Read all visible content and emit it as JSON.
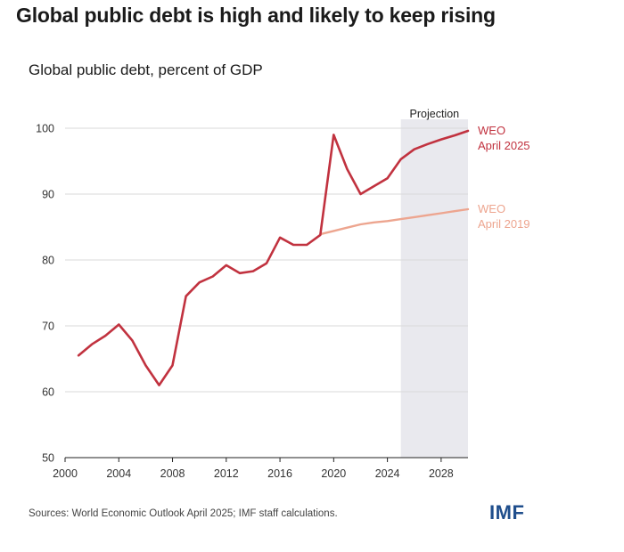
{
  "title": "Global public debt is high and likely to keep rising",
  "subtitle": "Global public debt, percent of GDP",
  "source": "Sources: World Economic Outlook April 2025; IMF staff calculations.",
  "logo": "IMF",
  "colors": {
    "weo2025": "#c1323f",
    "weo2019": "#eda58f",
    "projection_band": "#e9e9ee",
    "grid": "#d9d9d9"
  },
  "chart_data": {
    "type": "line",
    "xlim": [
      2000,
      2030
    ],
    "ylim": [
      50,
      100
    ],
    "x_ticks": [
      2000,
      2004,
      2008,
      2012,
      2016,
      2020,
      2024,
      2028
    ],
    "y_ticks": [
      50,
      60,
      70,
      80,
      90,
      100
    ],
    "grid": "horizontal",
    "projection": {
      "label": "Projection",
      "from": 2025,
      "to": 2030
    },
    "series": [
      {
        "name": "WEO April 2025",
        "label_lines": [
          "WEO",
          "April 2025"
        ],
        "x": [
          2001,
          2002,
          2003,
          2004,
          2005,
          2006,
          2007,
          2008,
          2009,
          2010,
          2011,
          2012,
          2013,
          2014,
          2015,
          2016,
          2017,
          2018,
          2019,
          2020,
          2021,
          2022,
          2023,
          2024,
          2025,
          2026,
          2027,
          2028,
          2029,
          2030
        ],
        "values": [
          65.5,
          67.2,
          68.5,
          70.2,
          67.8,
          64.0,
          61.0,
          64.0,
          74.5,
          76.6,
          77.5,
          79.2,
          78.0,
          78.3,
          79.5,
          83.4,
          82.3,
          82.3,
          83.8,
          99.0,
          93.8,
          90.0,
          91.2,
          92.4,
          95.3,
          96.8,
          97.6,
          98.3,
          98.9,
          99.6
        ]
      },
      {
        "name": "WEO April 2019",
        "label_lines": [
          "WEO",
          "April 2019"
        ],
        "x": [
          2019,
          2020,
          2021,
          2022,
          2023,
          2024,
          2025,
          2026,
          2027,
          2028,
          2029,
          2030
        ],
        "values": [
          83.9,
          84.4,
          84.9,
          85.4,
          85.7,
          85.9,
          86.2,
          86.5,
          86.8,
          87.1,
          87.4,
          87.7
        ]
      }
    ]
  }
}
